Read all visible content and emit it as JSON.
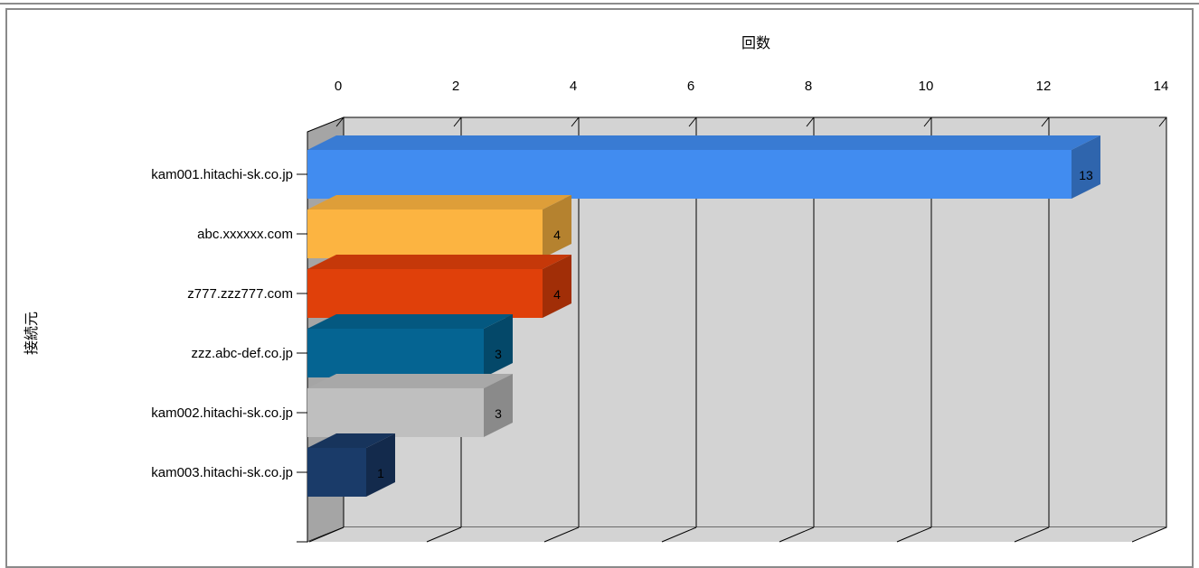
{
  "chart_data": {
    "type": "bar",
    "orientation": "horizontal",
    "style": "3d",
    "xlabel": "回数",
    "ylabel": "接続元",
    "xlim": [
      0,
      14
    ],
    "x_ticks": [
      "0",
      "2",
      "4",
      "6",
      "8",
      "10",
      "12",
      "14"
    ],
    "categories": [
      "kam001.hitachi-sk.co.jp",
      "abc.xxxxxx.com",
      "z777.zzz777.com",
      "zzz.abc-def.co.jp",
      "kam002.hitachi-sk.co.jp",
      "kam003.hitachi-sk.co.jp"
    ],
    "values": [
      13,
      4,
      4,
      3,
      3,
      1
    ],
    "data_labels": [
      "13",
      "4",
      "4",
      "3",
      "3",
      "1"
    ],
    "colors": [
      "#418cf0",
      "#fcb441",
      "#e0400a",
      "#056492",
      "#bfbfbf",
      "#1a3b69"
    ],
    "grid": true,
    "legend": "none"
  }
}
